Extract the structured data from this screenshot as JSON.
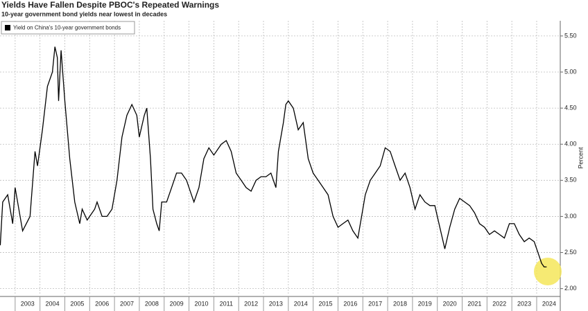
{
  "chart_data": {
    "type": "line",
    "title": "Yields Have Fallen Despite PBOC's Repeated Warnings",
    "subtitle": "10-year government bond yields near lowest in decades",
    "y_axis_label": "Percent",
    "x": [
      2002.4,
      2002.5,
      2002.7,
      2002.9,
      2003.0,
      2003.3,
      2003.6,
      2003.8,
      2003.9,
      2004.1,
      2004.3,
      2004.5,
      2004.6,
      2004.7,
      2004.75,
      2004.85,
      2005.0,
      2005.2,
      2005.4,
      2005.6,
      2005.7,
      2005.9,
      2006.2,
      2006.3,
      2006.5,
      2006.7,
      2006.9,
      2007.1,
      2007.3,
      2007.5,
      2007.7,
      2007.9,
      2008.0,
      2008.2,
      2008.3,
      2008.45,
      2008.55,
      2008.7,
      2008.8,
      2008.9,
      2009.1,
      2009.3,
      2009.5,
      2009.7,
      2009.9,
      2010.1,
      2010.2,
      2010.4,
      2010.6,
      2010.8,
      2011.0,
      2011.3,
      2011.5,
      2011.7,
      2011.9,
      2012.1,
      2012.3,
      2012.5,
      2012.7,
      2012.9,
      2013.1,
      2013.3,
      2013.5,
      2013.6,
      2013.8,
      2013.9,
      2014.0,
      2014.2,
      2014.4,
      2014.6,
      2014.8,
      2015.0,
      2015.2,
      2015.4,
      2015.6,
      2015.8,
      2016.0,
      2016.2,
      2016.4,
      2016.6,
      2016.8,
      2016.95,
      2017.1,
      2017.3,
      2017.5,
      2017.7,
      2017.9,
      2018.1,
      2018.3,
      2018.5,
      2018.7,
      2018.9,
      2019.1,
      2019.3,
      2019.5,
      2019.7,
      2019.9,
      2020.1,
      2020.3,
      2020.5,
      2020.7,
      2020.9,
      2021.1,
      2021.3,
      2021.5,
      2021.7,
      2021.9,
      2022.1,
      2022.3,
      2022.5,
      2022.7,
      2022.9,
      2023.1,
      2023.3,
      2023.5,
      2023.7,
      2023.9,
      2024.1,
      2024.2,
      2024.3,
      2024.4
    ],
    "series": [
      {
        "name": "Yield on China's 10-year government bonds",
        "color": "#000000",
        "values": [
          2.6,
          3.2,
          3.3,
          2.9,
          3.4,
          2.8,
          3.0,
          3.9,
          3.7,
          4.2,
          4.8,
          5.0,
          5.35,
          5.2,
          4.6,
          5.3,
          4.6,
          3.8,
          3.2,
          2.9,
          3.1,
          2.95,
          3.1,
          3.2,
          3.0,
          3.0,
          3.1,
          3.5,
          4.1,
          4.4,
          4.55,
          4.4,
          4.1,
          4.4,
          4.5,
          3.8,
          3.1,
          2.9,
          2.8,
          3.2,
          3.2,
          3.4,
          3.6,
          3.6,
          3.5,
          3.3,
          3.2,
          3.4,
          3.8,
          3.95,
          3.85,
          4.0,
          4.05,
          3.9,
          3.6,
          3.5,
          3.4,
          3.35,
          3.5,
          3.55,
          3.55,
          3.6,
          3.4,
          3.9,
          4.3,
          4.55,
          4.6,
          4.5,
          4.2,
          4.3,
          3.8,
          3.6,
          3.5,
          3.4,
          3.3,
          3.0,
          2.85,
          2.9,
          2.95,
          2.8,
          2.7,
          3.0,
          3.3,
          3.5,
          3.6,
          3.7,
          3.95,
          3.9,
          3.7,
          3.5,
          3.6,
          3.4,
          3.1,
          3.3,
          3.2,
          3.15,
          3.15,
          2.85,
          2.55,
          2.85,
          3.1,
          3.25,
          3.2,
          3.15,
          3.05,
          2.9,
          2.85,
          2.75,
          2.8,
          2.75,
          2.7,
          2.9,
          2.9,
          2.75,
          2.65,
          2.7,
          2.65,
          2.45,
          2.35,
          2.3,
          2.3
        ]
      }
    ],
    "xlim": [
      2002.39,
      2024.95
    ],
    "xticks": [
      2003,
      2004,
      2005,
      2006,
      2007,
      2008,
      2009,
      2010,
      2011,
      2012,
      2013,
      2014,
      2015,
      2016,
      2017,
      2018,
      2019,
      2020,
      2021,
      2022,
      2023,
      2024
    ],
    "ylim": [
      1.92,
      5.71
    ],
    "yticks": [
      {
        "value": 2.0,
        "label": "2.00"
      },
      {
        "value": 2.5,
        "label": "2.50"
      },
      {
        "value": 3.0,
        "label": "3.00"
      },
      {
        "value": 3.5,
        "label": "3.50"
      },
      {
        "value": 4.0,
        "label": "4.00"
      },
      {
        "value": 4.5,
        "label": "4.50"
      },
      {
        "value": 5.0,
        "label": "5.00"
      },
      {
        "value": 5.5,
        "label": "5.50"
      }
    ],
    "grid": true
  }
}
